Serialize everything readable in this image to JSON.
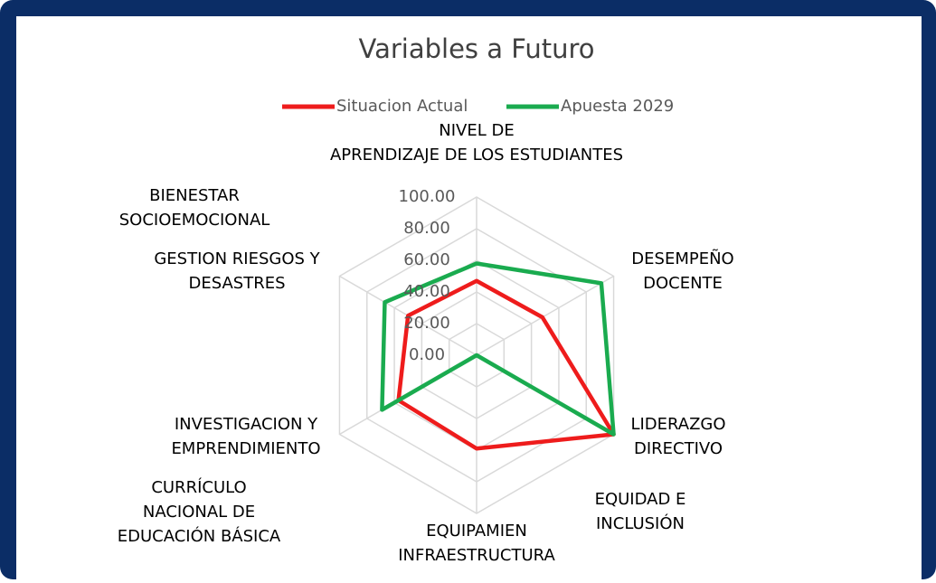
{
  "chart_data": {
    "type": "radar",
    "title": "Variables a Futuro",
    "categories": [
      "NIVEL DE APRENDIZAJE DE LOS ESTUDIANTES",
      "DESEMPEÑO DOCENTE",
      "LIDERAZGO DIRECTIVO",
      "EQUIPAMIEN INFRAESTRUCTURA",
      "INVESTIGACION Y EMPRENDIMIENTO",
      "GESTION RIESGOS Y DESASTRES"
    ],
    "series": [
      {
        "name": "Situacion Actual",
        "color": "#ee1c1c",
        "values": [
          47,
          48,
          100,
          59,
          57,
          50
        ]
      },
      {
        "name": "Apuesta 2029",
        "color": "#1aab4f",
        "values": [
          58,
          91,
          100,
          0,
          69,
          67
        ]
      }
    ],
    "ylim": [
      0,
      100
    ],
    "yticks": [
      {
        "value": 0,
        "label": "0.00"
      },
      {
        "value": 20,
        "label": "20.00"
      },
      {
        "value": 40,
        "label": "40.00"
      },
      {
        "value": 60,
        "label": "60.00"
      },
      {
        "value": 80,
        "label": "80.00"
      },
      {
        "value": 100,
        "label": "100.00"
      }
    ],
    "annotations": [
      "BIENESTAR SOCIOEMOCIONAL",
      "CURRÍCULO NACIONAL DE EDUCACIÓN BÁSICA",
      "EQUIDAD E INCLUSIÓN"
    ],
    "grid": true,
    "legend": "top"
  }
}
